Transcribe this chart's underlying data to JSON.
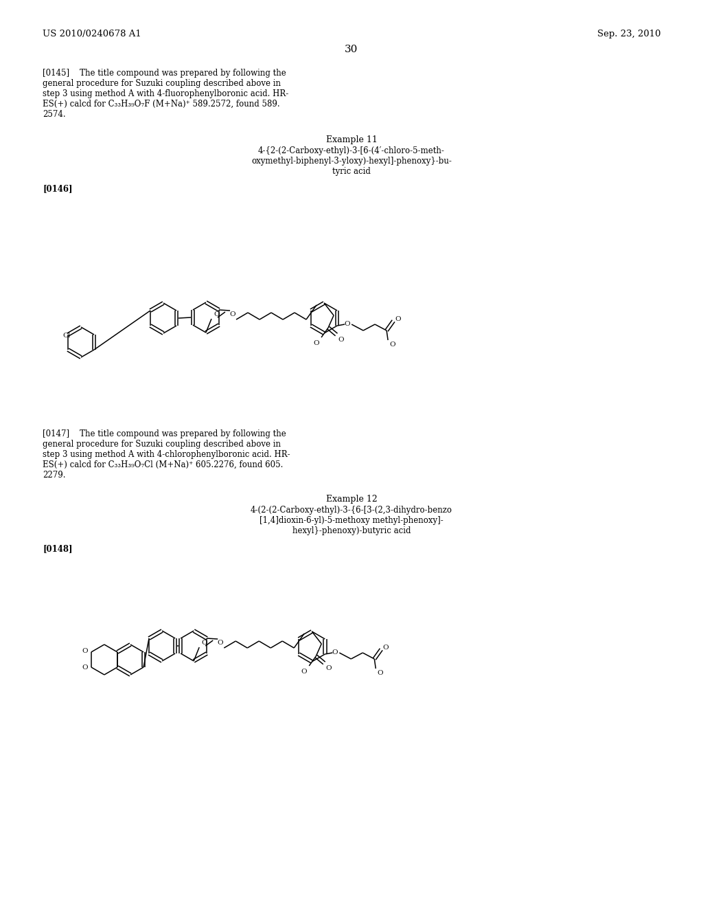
{
  "background_color": "#ffffff",
  "page_number": "30",
  "header_left": "US 2010/0240678 A1",
  "header_right": "Sep. 23, 2010",
  "para145": "[0145]    The title compound was prepared by following the\ngeneral procedure for Suzuki coupling described above in\nstep 3 using method A with 4-fluorophenylboronic acid. HR-\nES(+) calcd for C₃₃H₃₉O₇F (M+Na)⁺ 589.2572, found 589.\n2574.",
  "ex11_title": "Example 11",
  "ex11_name": "4-{2-(2-Carboxy-ethyl)-3-[6-(4′-chloro-5-meth-\noxymethyl-biphenyl-3-yloxy)-hexyl]-phenoxy}-bu-\ntyric acid",
  "para146": "[0146]",
  "para147": "[0147]    The title compound was prepared by following the\ngeneral procedure for Suzuki coupling described above in\nstep 3 using method A with 4-chlorophenylboronic acid. HR-\nES(+) calcd for C₃₃H₃₉O₇Cl (M+Na)⁺ 605.2276, found 605.\n2279.",
  "ex12_title": "Example 12",
  "ex12_name": "4-(2-(2-Carboxy-ethyl)-3-{6-[3-(2,3-dihydro-benzo\n[1,4]dioxin-6-yl)-5-methoxy methyl-phenoxy]-\nhexyl}-phenoxy)-butyric acid",
  "para148": "[0148]",
  "text_color": "#000000",
  "fs_header": 9.5,
  "fs_body": 8.5,
  "fs_example": 9.0,
  "fs_page": 11.0
}
